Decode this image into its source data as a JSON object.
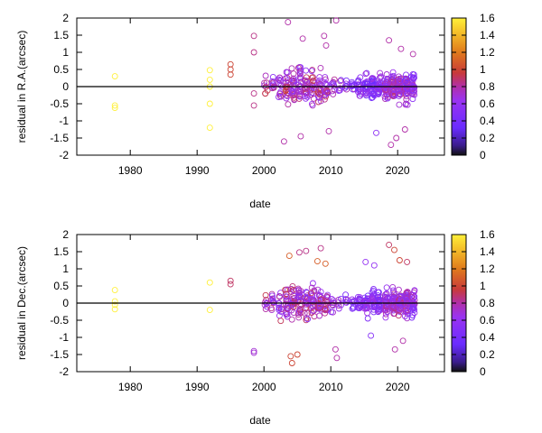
{
  "chart_data": [
    {
      "type": "scatter",
      "xlabel": "date",
      "ylabel": "residual in R.A.(arcsec)",
      "xlim": [
        1972,
        2027
      ],
      "ylim": [
        -2,
        2
      ],
      "x_ticks": [
        1980,
        1990,
        2000,
        2010,
        2020
      ],
      "y_ticks": [
        -2,
        -1.5,
        -1,
        -0.5,
        0,
        0.5,
        1,
        1.5,
        2
      ],
      "zero_line": true,
      "grid": false,
      "colorbar": {
        "min": 0,
        "max": 1.6,
        "ticks": [
          0,
          0.2,
          0.4,
          0.6,
          0.8,
          1,
          1.2,
          1.4,
          1.6
        ],
        "palette": "black-purple-red-yellow"
      },
      "series": [
        {
          "points": [
            [
              1977.7,
              0.3,
              1.6
            ],
            [
              1977.7,
              -0.55,
              1.6
            ],
            [
              1977.7,
              -0.62,
              1.6
            ],
            [
              1991.9,
              0.48,
              1.6
            ],
            [
              1991.9,
              0.2,
              1.6
            ],
            [
              1991.9,
              0.0,
              1.6
            ],
            [
              1991.9,
              -0.5,
              1.6
            ],
            [
              1991.9,
              -1.2,
              1.6
            ],
            [
              1995.0,
              0.65,
              1.0
            ],
            [
              1995.0,
              0.5,
              1.0
            ],
            [
              1995.0,
              0.35,
              1.0
            ],
            [
              1998.5,
              1.48,
              0.85
            ],
            [
              1998.5,
              1.0,
              0.85
            ],
            [
              1998.5,
              -0.2,
              0.85
            ],
            [
              1998.5,
              -0.55,
              0.85
            ],
            [
              2003.6,
              1.88,
              0.8
            ],
            [
              2005.8,
              1.4,
              0.8
            ],
            [
              2009.0,
              1.48,
              0.8
            ],
            [
              2009.3,
              1.2,
              0.8
            ],
            [
              2010.8,
              1.93,
              0.8
            ],
            [
              2003.0,
              -1.6,
              0.8
            ],
            [
              2009.7,
              -1.3,
              0.8
            ],
            [
              2005.5,
              -1.45,
              0.8
            ],
            [
              2016.8,
              -1.35,
              0.55
            ],
            [
              2018.7,
              1.35,
              0.8
            ],
            [
              2019.8,
              -1.5,
              0.8
            ],
            [
              2021.1,
              -1.25,
              0.8
            ],
            [
              2020.5,
              1.1,
              0.8
            ],
            [
              2019.0,
              -1.7,
              0.8
            ],
            [
              2022.3,
              0.95,
              0.8
            ]
          ]
        }
      ]
    },
    {
      "type": "scatter",
      "xlabel": "date",
      "ylabel": "residual in Dec.(arcsec)",
      "xlim": [
        1972,
        2027
      ],
      "ylim": [
        -2,
        2
      ],
      "x_ticks": [
        1980,
        1990,
        2000,
        2010,
        2020
      ],
      "y_ticks": [
        -2,
        -1.5,
        -1,
        -0.5,
        0,
        0.5,
        1,
        1.5,
        2
      ],
      "zero_line": true,
      "grid": false,
      "colorbar": {
        "min": 0,
        "max": 1.6,
        "ticks": [
          0,
          0.2,
          0.4,
          0.6,
          0.8,
          1,
          1.2,
          1.4,
          1.6
        ],
        "palette": "black-purple-red-yellow"
      },
      "series": [
        {
          "points": [
            [
              1977.7,
              0.38,
              1.6
            ],
            [
              1977.7,
              0.05,
              1.6
            ],
            [
              1977.7,
              -0.05,
              1.6
            ],
            [
              1977.7,
              -0.18,
              1.6
            ],
            [
              1991.9,
              0.6,
              1.6
            ],
            [
              1991.9,
              -0.2,
              1.6
            ],
            [
              1995.0,
              0.65,
              0.9
            ],
            [
              1995.0,
              0.55,
              0.9
            ],
            [
              1998.5,
              -1.4,
              0.7
            ],
            [
              1998.5,
              -1.45,
              0.7
            ],
            [
              2003.8,
              1.38,
              1.1
            ],
            [
              2005.3,
              1.48,
              0.85
            ],
            [
              2006.3,
              1.52,
              0.85
            ],
            [
              2008.5,
              1.6,
              0.85
            ],
            [
              2008.0,
              1.22,
              1.1
            ],
            [
              2009.2,
              1.15,
              1.1
            ],
            [
              2004.0,
              -1.55,
              1.0
            ],
            [
              2004.2,
              -1.75,
              1.0
            ],
            [
              2005.0,
              -1.5,
              1.0
            ],
            [
              2010.7,
              -1.35,
              0.8
            ],
            [
              2010.9,
              -1.6,
              0.8
            ],
            [
              2015.2,
              1.2,
              0.6
            ],
            [
              2016.5,
              1.1,
              0.6
            ],
            [
              2018.7,
              1.7,
              0.9
            ],
            [
              2019.5,
              1.55,
              1.0
            ],
            [
              2020.3,
              1.25,
              1.0
            ],
            [
              2021.4,
              1.2,
              0.9
            ],
            [
              2019.6,
              -1.35,
              0.8
            ],
            [
              2020.8,
              -1.1,
              0.8
            ],
            [
              2016.0,
              -0.95,
              0.5
            ]
          ]
        }
      ]
    }
  ]
}
